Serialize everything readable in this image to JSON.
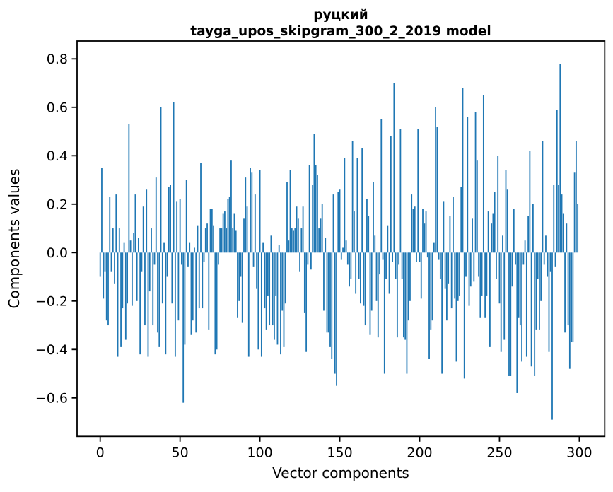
{
  "figure": {
    "background": "#ffffff",
    "spine_color": "#000000",
    "text_color": "#000000"
  },
  "chart_data": {
    "type": "bar",
    "title_line1": "руцкий",
    "title_line2": "tayga_upos_skipgram_300_2_2019 model",
    "xlabel": "Vector components",
    "ylabel": "Components values",
    "bar_color": "#1f77b4",
    "grid": false,
    "legend": false,
    "x_ticks": [
      0,
      50,
      100,
      150,
      200,
      250,
      300
    ],
    "y_ticks": [
      0.8,
      0.6,
      0.4,
      0.2,
      0.0,
      -0.2,
      -0.4,
      -0.6
    ],
    "y_tick_labels": [
      "0.8",
      "0.6",
      "0.4",
      "0.2",
      "0.0",
      "−0.2",
      "−0.4",
      "−0.6"
    ],
    "xlim": [
      -15,
      314
    ],
    "ylim": [
      -0.76,
      0.875
    ],
    "n_components": 300,
    "values": [
      -0.1,
      0.35,
      -0.19,
      -0.08,
      -0.28,
      -0.3,
      0.23,
      -0.08,
      0.1,
      -0.13,
      0.24,
      -0.43,
      0.1,
      -0.39,
      -0.23,
      0.04,
      -0.36,
      -0.21,
      0.53,
      0.05,
      -0.22,
      0.08,
      0.24,
      -0.2,
      0.06,
      -0.42,
      -0.08,
      0.19,
      -0.3,
      0.26,
      -0.43,
      -0.16,
      0.1,
      -0.3,
      -0.05,
      0.31,
      -0.33,
      -0.39,
      0.6,
      -0.21,
      0.04,
      -0.42,
      -0.1,
      0.27,
      0.28,
      -0.21,
      0.62,
      -0.43,
      0.21,
      -0.28,
      0.22,
      -0.05,
      -0.62,
      -0.38,
      0.3,
      -0.06,
      0.04,
      -0.34,
      -0.28,
      0.02,
      -0.33,
      0.11,
      -0.23,
      0.37,
      -0.23,
      -0.04,
      0.1,
      0.12,
      -0.32,
      0.18,
      0.18,
      0.11,
      -0.42,
      -0.4,
      -0.05,
      0.1,
      0.1,
      0.16,
      0.17,
      0.1,
      0.22,
      0.23,
      0.38,
      0.1,
      0.16,
      0.09,
      -0.27,
      -0.2,
      -0.1,
      -0.29,
      0.14,
      0.31,
      0.19,
      -0.43,
      0.35,
      0.33,
      -0.06,
      0.24,
      -0.15,
      -0.4,
      0.34,
      -0.43,
      0.04,
      -0.23,
      -0.32,
      -0.18,
      -0.3,
      0.07,
      -0.3,
      -0.36,
      -0.18,
      -0.38,
      0.03,
      -0.42,
      -0.24,
      -0.39,
      -0.21,
      0.29,
      0.05,
      0.34,
      0.1,
      0.09,
      0.1,
      0.19,
      0.14,
      -0.08,
      0.1,
      0.19,
      -0.25,
      -0.41,
      -0.05,
      0.36,
      -0.07,
      0.28,
      0.49,
      0.36,
      0.32,
      0.1,
      0.14,
      0.2,
      -0.24,
      0.06,
      -0.33,
      -0.33,
      -0.39,
      -0.44,
      0.24,
      -0.5,
      -0.55,
      0.25,
      0.26,
      -0.03,
      0.02,
      0.39,
      0.05,
      -0.05,
      -0.14,
      -0.11,
      0.46,
      0.17,
      -0.17,
      0.39,
      -0.11,
      -0.21,
      0.43,
      -0.22,
      -0.3,
      0.22,
      0.15,
      -0.34,
      -0.24,
      0.29,
      0.07,
      -0.2,
      -0.35,
      -0.09,
      0.55,
      -0.03,
      -0.5,
      -0.11,
      0.11,
      -0.17,
      0.48,
      -0.04,
      0.7,
      -0.11,
      -0.35,
      -0.05,
      0.51,
      -0.11,
      -0.35,
      -0.36,
      -0.5,
      -0.28,
      -0.2,
      0.24,
      0.18,
      0.19,
      -0.04,
      0.51,
      -0.04,
      -0.19,
      0.18,
      0.12,
      0.17,
      -0.02,
      -0.44,
      -0.32,
      -0.28,
      0.04,
      0.6,
      0.52,
      -0.03,
      -0.11,
      -0.5,
      0.21,
      -0.15,
      -0.28,
      -0.13,
      0.15,
      -0.23,
      0.23,
      -0.19,
      -0.45,
      -0.2,
      -0.18,
      0.27,
      0.68,
      -0.52,
      -0.1,
      0.56,
      -0.22,
      -0.14,
      0.14,
      -0.12,
      0.58,
      0.38,
      -0.1,
      -0.27,
      -0.18,
      0.65,
      -0.27,
      -0.18,
      0.17,
      -0.39,
      0.12,
      0.16,
      0.25,
      -0.11,
      0.4,
      -0.21,
      -0.41,
      0.07,
      -0.36,
      0.34,
      0.26,
      -0.51,
      -0.51,
      -0.14,
      0.18,
      -0.05,
      -0.58,
      -0.27,
      -0.3,
      -0.45,
      -0.05,
      0.05,
      -0.43,
      0.15,
      0.42,
      -0.47,
      0.2,
      -0.51,
      -0.32,
      -0.11,
      -0.32,
      -0.2,
      0.46,
      -0.05,
      0.07,
      -0.1,
      -0.41,
      -0.08,
      -0.69,
      0.28,
      -0.06,
      0.59,
      0.28,
      0.78,
      0.24,
      0.16,
      -0.33,
      0.12,
      -0.3,
      -0.48,
      -0.37,
      -0.37,
      0.33,
      0.46,
      0.2
    ]
  }
}
